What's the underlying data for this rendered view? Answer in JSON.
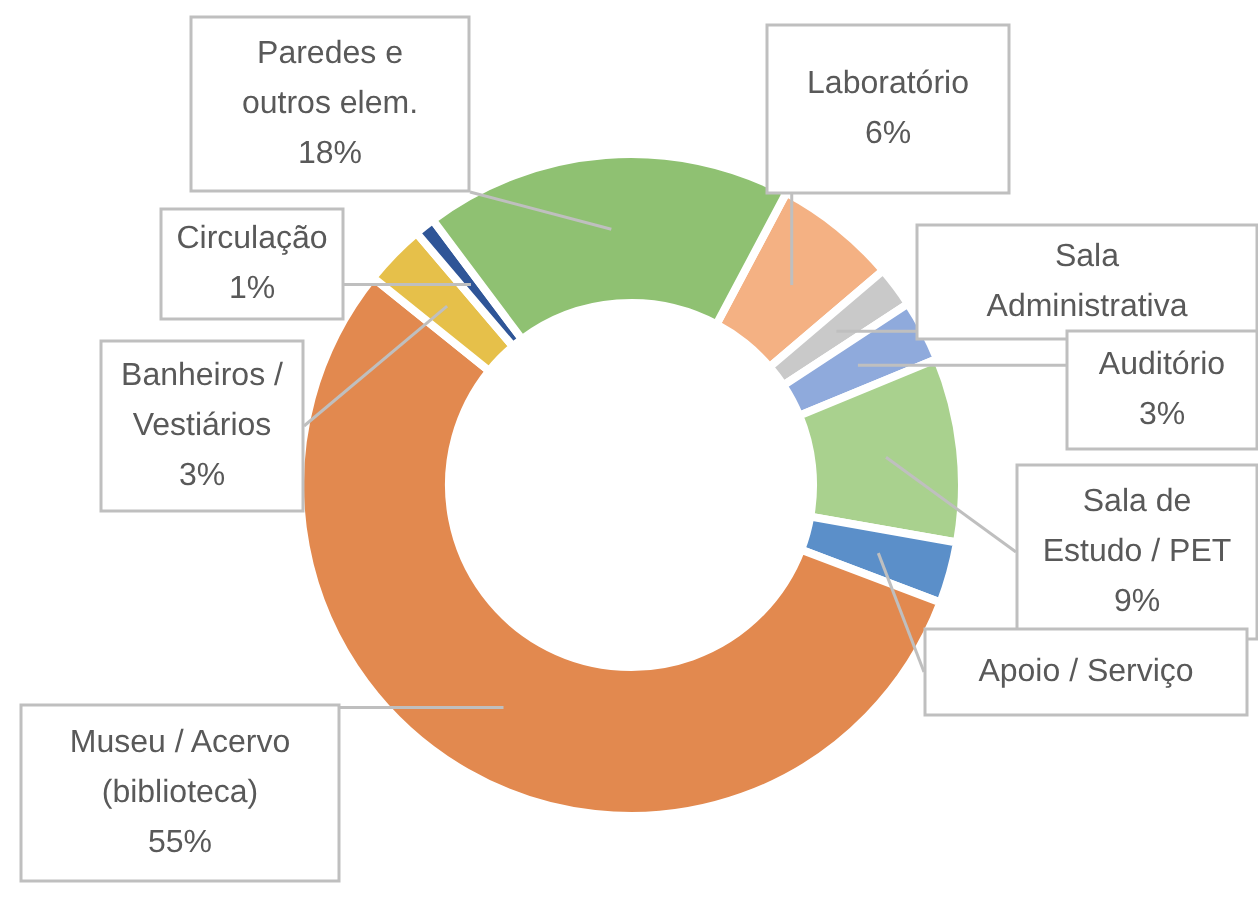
{
  "chart_data": {
    "type": "donut",
    "categories": [
      "Laboratório",
      "Sala Administrativa",
      "Auditório",
      "Sala de Estudo / PET",
      "Apoio / Serviço",
      "Museu / Acervo (biblioteca)",
      "Banheiros / Vestiários",
      "Circulação",
      "Paredes e outros elem."
    ],
    "values": [
      6,
      2,
      3,
      9,
      3,
      55,
      3,
      1,
      18
    ],
    "value_labels": [
      "6%",
      null,
      "3%",
      "9%",
      null,
      "55%",
      "3%",
      "1%",
      "18%"
    ],
    "colors": [
      "#f4b183",
      "#c9c9c9",
      "#8faadc",
      "#a9d18e",
      "#5b8fc9",
      "#e2894f",
      "#e6c04a",
      "#2f5597",
      "#8fc172"
    ],
    "legend": false
  }
}
